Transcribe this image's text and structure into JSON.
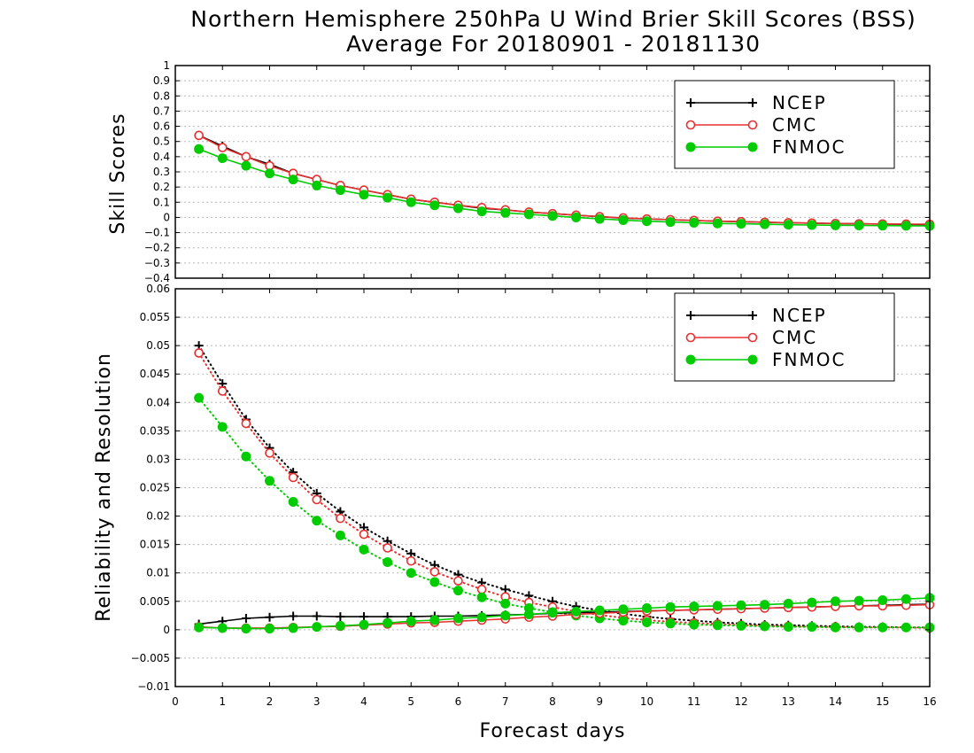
{
  "figure": {
    "title_line1": "Northern Hemisphere 250hPa U Wind Brier Skill Scores (BSS)",
    "title_line2": "Average For 20180901 - 20181130",
    "xlabel": "Forecast days"
  },
  "colors": {
    "NCEP": "#000000",
    "CMC": "#e83030",
    "FNMOC": "#00cc00"
  },
  "chart_data": [
    {
      "type": "line",
      "ylabel": "Skill Scores",
      "ylim": [
        -0.4,
        1
      ],
      "xlim": [
        0,
        16
      ],
      "grid": true,
      "legend_placement": "top-right",
      "yticks": [
        "−0.4",
        "−0.3",
        "−0.2",
        "−0.1",
        "0",
        "0.1",
        "0.2",
        "0.3",
        "0.4",
        "0.5",
        "0.6",
        "0.7",
        "0.8",
        "0.9",
        "1"
      ],
      "x": [
        0.5,
        1,
        1.5,
        2,
        2.5,
        3,
        3.5,
        4,
        4.5,
        5,
        5.5,
        6,
        6.5,
        7,
        7.5,
        8,
        8.5,
        9,
        9.5,
        10,
        10.5,
        11,
        11.5,
        12,
        12.5,
        13,
        13.5,
        14,
        14.5,
        15,
        15.5,
        16
      ],
      "series": [
        {
          "name": "NCEP",
          "marker": "plus",
          "line": "solid",
          "values": [
            0.54,
            0.47,
            0.4,
            0.35,
            0.29,
            0.25,
            0.21,
            0.18,
            0.15,
            0.12,
            0.1,
            0.08,
            0.06,
            0.05,
            0.035,
            0.025,
            0.015,
            0.005,
            -0.005,
            -0.01,
            -0.015,
            -0.02,
            -0.025,
            -0.028,
            -0.032,
            -0.035,
            -0.038,
            -0.04,
            -0.042,
            -0.044,
            -0.046,
            -0.048
          ]
        },
        {
          "name": "CMC",
          "marker": "open-circle",
          "line": "solid",
          "values": [
            0.54,
            0.46,
            0.4,
            0.34,
            0.29,
            0.25,
            0.21,
            0.18,
            0.15,
            0.12,
            0.1,
            0.08,
            0.065,
            0.05,
            0.035,
            0.025,
            0.015,
            0.005,
            -0.003,
            -0.01,
            -0.015,
            -0.02,
            -0.025,
            -0.028,
            -0.032,
            -0.035,
            -0.037,
            -0.04,
            -0.042,
            -0.043,
            -0.044,
            -0.045
          ]
        },
        {
          "name": "FNMOC",
          "marker": "filled-circle",
          "line": "solid",
          "values": [
            0.45,
            0.39,
            0.34,
            0.29,
            0.25,
            0.21,
            0.18,
            0.15,
            0.13,
            0.1,
            0.08,
            0.06,
            0.04,
            0.03,
            0.02,
            0.01,
            0.0,
            -0.01,
            -0.018,
            -0.025,
            -0.03,
            -0.035,
            -0.04,
            -0.042,
            -0.045,
            -0.048,
            -0.05,
            -0.052,
            -0.053,
            -0.054,
            -0.055,
            -0.056
          ]
        }
      ]
    },
    {
      "type": "line",
      "ylabel": "Reliability and Resolution",
      "ylim": [
        -0.01,
        0.06
      ],
      "xlim": [
        0,
        16
      ],
      "grid": true,
      "legend_placement": "top-right",
      "yticks": [
        "−0.01",
        "−0.005",
        "0",
        "0.005",
        "0.01",
        "0.015",
        "0.02",
        "0.025",
        "0.03",
        "0.035",
        "0.04",
        "0.045",
        "0.05",
        "0.055",
        "0.06"
      ],
      "x": [
        0.5,
        1,
        1.5,
        2,
        2.5,
        3,
        3.5,
        4,
        4.5,
        5,
        5.5,
        6,
        6.5,
        7,
        7.5,
        8,
        8.5,
        9,
        9.5,
        10,
        10.5,
        11,
        11.5,
        12,
        12.5,
        13,
        13.5,
        14,
        14.5,
        15,
        15.5,
        16
      ],
      "series": [
        {
          "name": "NCEP",
          "component": "resolution",
          "marker": "plus",
          "line": "dotted",
          "values": [
            0.05,
            0.0433,
            0.037,
            0.032,
            0.0277,
            0.024,
            0.0208,
            0.018,
            0.0156,
            0.0134,
            0.0114,
            0.0097,
            0.0083,
            0.0071,
            0.006,
            0.005,
            0.0041,
            0.0034,
            0.0028,
            0.0023,
            0.0019,
            0.0016,
            0.0013,
            0.0011,
            0.0009,
            0.0008,
            0.0007,
            0.0006,
            0.0005,
            0.0005,
            0.0004,
            0.0004
          ]
        },
        {
          "name": "CMC",
          "component": "resolution",
          "marker": "open-circle",
          "line": "dotted",
          "values": [
            0.0487,
            0.042,
            0.0363,
            0.0311,
            0.0268,
            0.0229,
            0.0196,
            0.0168,
            0.0144,
            0.0121,
            0.0102,
            0.0086,
            0.0071,
            0.0058,
            0.0048,
            0.004,
            0.0032,
            0.0026,
            0.0021,
            0.0017,
            0.0014,
            0.0012,
            0.001,
            0.0008,
            0.0007,
            0.0006,
            0.0005,
            0.0005,
            0.0004,
            0.0004,
            0.0004,
            0.0003
          ]
        },
        {
          "name": "FNMOC",
          "component": "resolution",
          "marker": "filled-circle",
          "line": "dotted",
          "values": [
            0.0408,
            0.0357,
            0.0305,
            0.0262,
            0.0225,
            0.0192,
            0.0166,
            0.0141,
            0.0119,
            0.01,
            0.0084,
            0.0069,
            0.0057,
            0.0046,
            0.0038,
            0.0031,
            0.0025,
            0.002,
            0.0016,
            0.0013,
            0.0011,
            0.0009,
            0.0008,
            0.0007,
            0.0006,
            0.0005,
            0.0005,
            0.0004,
            0.0004,
            0.0004,
            0.0004,
            0.0004
          ]
        },
        {
          "name": "NCEP",
          "component": "reliability",
          "marker": "plus",
          "line": "solid",
          "values": [
            0.001,
            0.0015,
            0.002,
            0.0022,
            0.0024,
            0.0024,
            0.0023,
            0.0023,
            0.0023,
            0.0023,
            0.0024,
            0.0024,
            0.0025,
            0.0026,
            0.0027,
            0.0029,
            0.003,
            0.0031,
            0.0032,
            0.0033,
            0.0034,
            0.0035,
            0.0036,
            0.0037,
            0.0038,
            0.0039,
            0.004,
            0.0041,
            0.0042,
            0.0043,
            0.0044,
            0.0045
          ]
        },
        {
          "name": "CMC",
          "component": "reliability",
          "marker": "open-circle",
          "line": "solid",
          "values": [
            0.0005,
            0.0003,
            0.0003,
            0.0003,
            0.0004,
            0.0005,
            0.0006,
            0.0008,
            0.001,
            0.0012,
            0.0013,
            0.0015,
            0.0017,
            0.0019,
            0.0022,
            0.0024,
            0.0027,
            0.0029,
            0.0031,
            0.0033,
            0.0034,
            0.0035,
            0.0036,
            0.0037,
            0.0038,
            0.0039,
            0.004,
            0.0041,
            0.0042,
            0.0042,
            0.0043,
            0.0044
          ]
        },
        {
          "name": "FNMOC",
          "component": "reliability",
          "marker": "filled-circle",
          "line": "solid",
          "values": [
            0.0004,
            0.0003,
            0.0002,
            0.0002,
            0.0003,
            0.0005,
            0.0007,
            0.0009,
            0.0012,
            0.0015,
            0.0017,
            0.002,
            0.0022,
            0.0025,
            0.0027,
            0.003,
            0.0032,
            0.0034,
            0.0036,
            0.0038,
            0.004,
            0.0041,
            0.0042,
            0.0043,
            0.0044,
            0.0046,
            0.0048,
            0.005,
            0.0051,
            0.0052,
            0.0054,
            0.0056
          ]
        }
      ]
    }
  ]
}
